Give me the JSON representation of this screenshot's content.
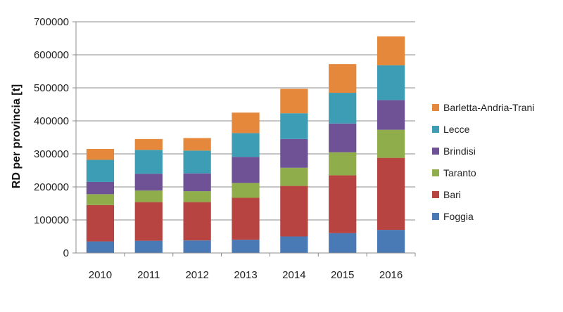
{
  "chart_data": {
    "type": "bar",
    "stacked": true,
    "title": "",
    "xlabel": "",
    "ylabel": "RD per provincia [t]",
    "ylim": [
      0,
      700000
    ],
    "yticks": [
      0,
      100000,
      200000,
      300000,
      400000,
      500000,
      600000,
      700000
    ],
    "ytick_labels": [
      "0",
      "100000",
      "200000",
      "300000",
      "400000",
      "500000",
      "600000",
      "700000"
    ],
    "grid": true,
    "legend_position": "right",
    "categories": [
      "2010",
      "2011",
      "2012",
      "2013",
      "2014",
      "2015",
      "2016"
    ],
    "series": [
      {
        "name": "Foggia",
        "color": "#4a7ab5",
        "values": [
          35000,
          37000,
          38000,
          40000,
          50000,
          60000,
          70000
        ]
      },
      {
        "name": "Bari",
        "color": "#b84441",
        "values": [
          110000,
          117000,
          116000,
          127000,
          153000,
          175000,
          218000
        ]
      },
      {
        "name": "Taranto",
        "color": "#8fae4b",
        "values": [
          33000,
          35000,
          33000,
          45000,
          55000,
          70000,
          85000
        ]
      },
      {
        "name": "Brindisi",
        "color": "#6e5295",
        "values": [
          37000,
          51000,
          54000,
          79000,
          87000,
          87000,
          90000
        ]
      },
      {
        "name": "Lecce",
        "color": "#3d9db5",
        "values": [
          67000,
          72000,
          69000,
          72000,
          78000,
          93000,
          105000
        ]
      },
      {
        "name": "Barletta-Andria-Trani",
        "color": "#e5883b",
        "values": [
          33000,
          33000,
          38000,
          62000,
          74000,
          87000,
          88000
        ]
      }
    ]
  }
}
